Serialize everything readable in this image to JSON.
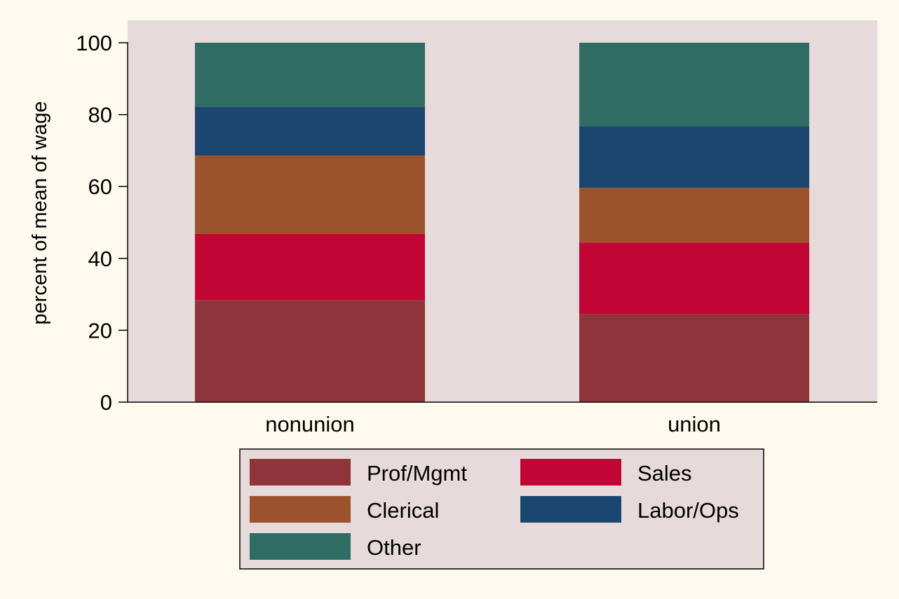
{
  "chart_data": {
    "type": "bar",
    "stacked": true,
    "categories": [
      "nonunion",
      "union"
    ],
    "series": [
      {
        "name": "Prof/Mgmt",
        "color": "#8f343b",
        "values": [
          28.4,
          24.5
        ]
      },
      {
        "name": "Sales",
        "color": "#c10534",
        "values": [
          18.4,
          19.9
        ]
      },
      {
        "name": "Clerical",
        "color": "#9c522d",
        "values": [
          21.8,
          15.2
        ]
      },
      {
        "name": "Labor/Ops",
        "color": "#1b466f",
        "values": [
          13.6,
          17.1
        ]
      },
      {
        "name": "Other",
        "color": "#2e6c64",
        "values": [
          17.8,
          23.3
        ]
      }
    ],
    "title": "",
    "xlabel": "",
    "ylabel": "percent of mean of wage",
    "ylim": [
      0,
      100
    ],
    "yticks": [
      0,
      20,
      40,
      60,
      80,
      100
    ],
    "grid": false,
    "legend": {
      "position": "bottom",
      "columns": 2,
      "order": [
        "Prof/Mgmt",
        "Sales",
        "Clerical",
        "Labor/Ops",
        "Other"
      ]
    },
    "colors": {
      "page_background": "#fffaf0",
      "plot_background": "#e6dada",
      "legend_background": "#e6dada"
    }
  }
}
